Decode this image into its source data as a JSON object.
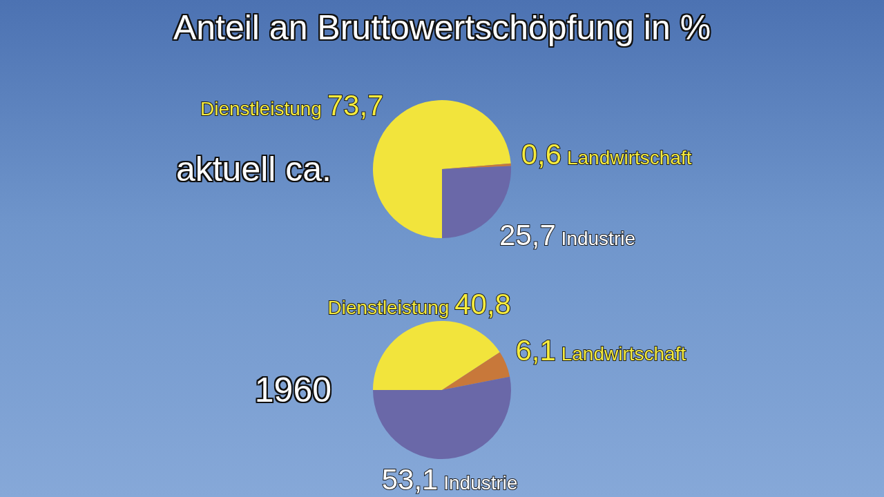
{
  "chart_data": [
    {
      "type": "pie",
      "title": "Anteil an Bruttowertschöpfung in %",
      "subtitle": "aktuell ca.",
      "categories": [
        "Dienstleistung",
        "Landwirtschaft",
        "Industrie"
      ],
      "values": [
        73.7,
        0.6,
        25.7
      ],
      "value_labels": [
        "73,7",
        "0,6",
        "25,7"
      ],
      "colors": [
        "#f2e43c",
        "#c8783a",
        "#6a68a8"
      ]
    },
    {
      "type": "pie",
      "subtitle": "1960",
      "categories": [
        "Dienstleistung",
        "Landwirtschaft",
        "Industrie"
      ],
      "values": [
        40.8,
        6.1,
        53.1
      ],
      "value_labels": [
        "40,8",
        "6,1",
        "53,1"
      ],
      "colors": [
        "#f2e43c",
        "#c8783a",
        "#6a68a8"
      ]
    }
  ]
}
